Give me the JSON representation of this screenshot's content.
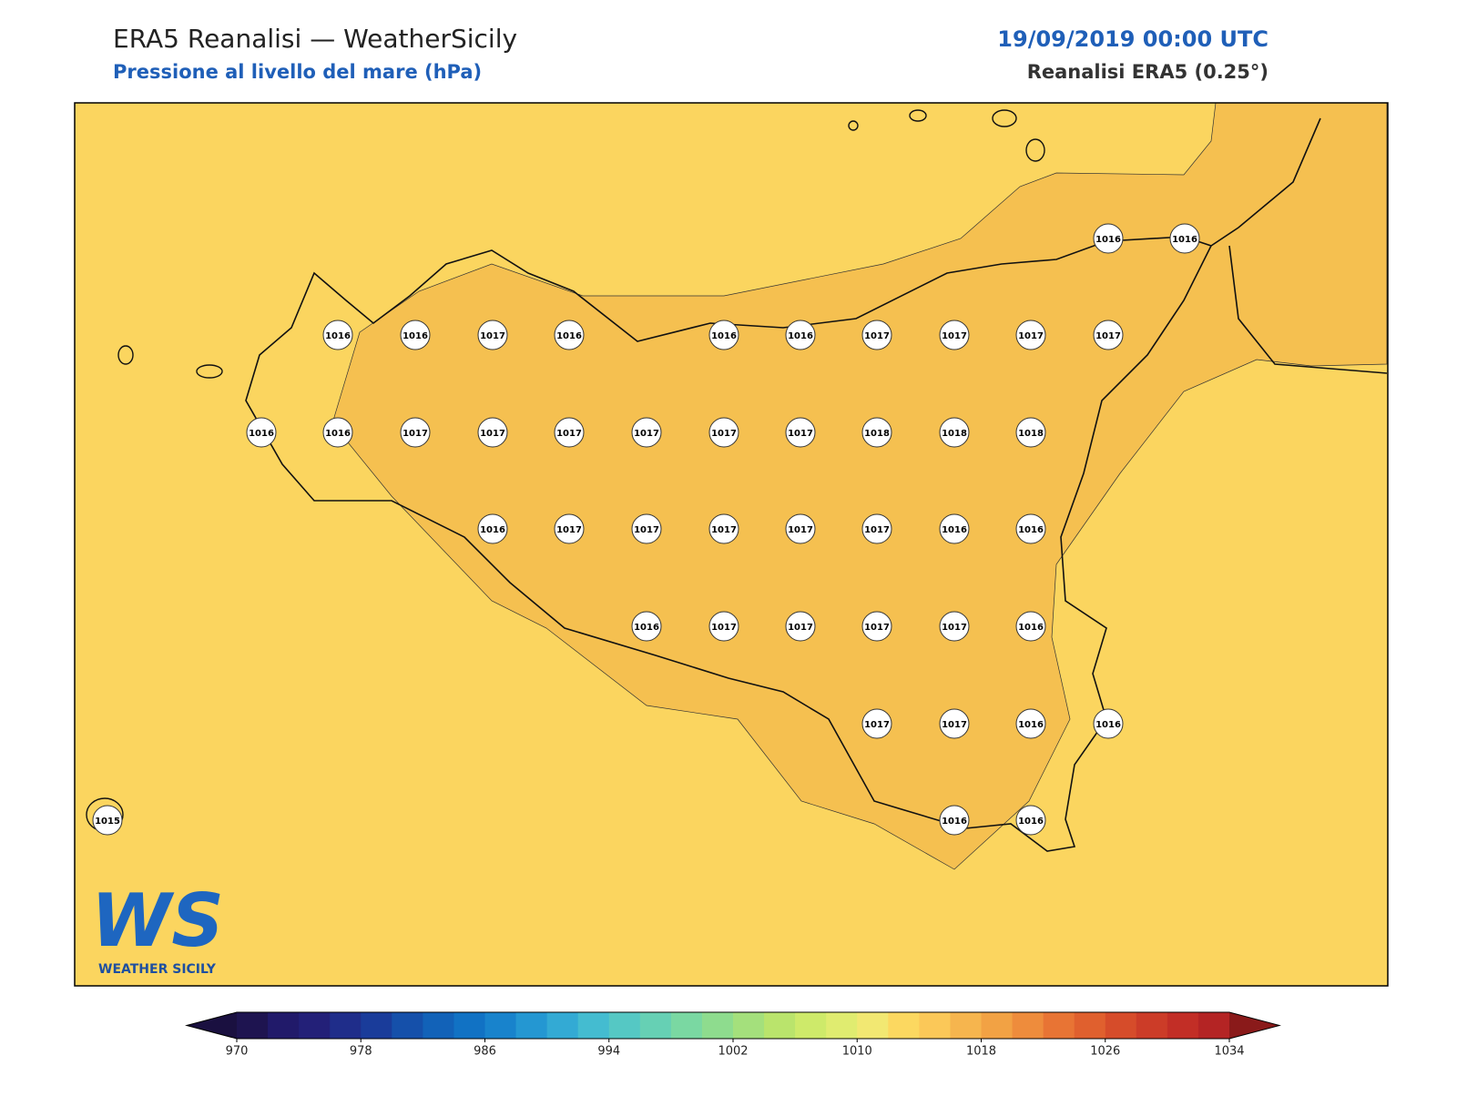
{
  "header": {
    "title": "ERA5 Reanalisi — WeatherSicily",
    "subtitle": "Pressione al livello del mare (hPa)",
    "date": "19/09/2019 00:00 UTC",
    "source": "Reanalisi ERA5 (0.25°)"
  },
  "logo": {
    "mark": "WS",
    "name": "WEATHER SICILY"
  },
  "chart_data": {
    "type": "contour-map",
    "stations": [
      1016,
      1016,
      1016,
      1016,
      1017,
      1016,
      1016,
      1016,
      1017,
      1017,
      1017,
      1017,
      1016,
      1016,
      1017,
      1017,
      1017,
      1017,
      1017,
      1017,
      1018,
      1018,
      1018,
      1016,
      1017,
      1017,
      1017,
      1017,
      1017,
      1016,
      1016,
      1016,
      1017,
      1017,
      1017,
      1017,
      1016,
      1017,
      1017,
      1016,
      1016,
      1015,
      1016,
      1016
    ],
    "clim": [
      970,
      1034
    ],
    "cticks": [
      970,
      978,
      986,
      994,
      1002,
      1010,
      1018,
      1026,
      1034
    ],
    "colors": [
      "#1e1450",
      "#211a6a",
      "#232078",
      "#1f2d8a",
      "#1a3c9a",
      "#1550aa",
      "#1262b8",
      "#1172c4",
      "#1883cc",
      "#2497d2",
      "#33aad4",
      "#44bcd0",
      "#55c8c4",
      "#66d0b4",
      "#7ad8a2",
      "#8edc8e",
      "#a4e07c",
      "#bae46c",
      "#ceea6a",
      "#e0ec70",
      "#f2e872",
      "#fcd860",
      "#fbc858",
      "#f6b54e",
      "#f2a244",
      "#ee8c3c",
      "#e87434",
      "#e0602e",
      "#d64c2a",
      "#cc3c28",
      "#c22e26",
      "#b42424"
    ],
    "extend_colors": [
      "#1a1040",
      "#8a1a1a"
    ]
  }
}
